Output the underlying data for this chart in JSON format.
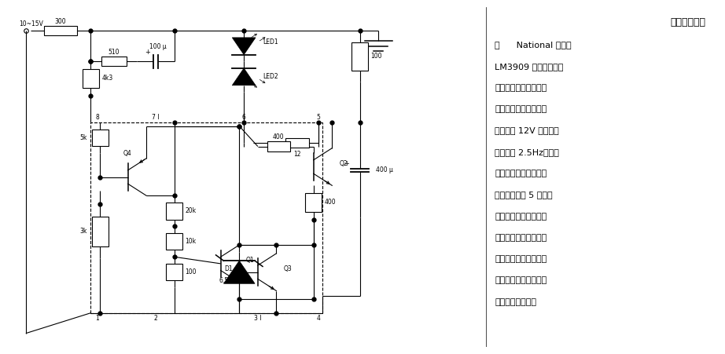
{
  "bg_color": "#ffffff",
  "fig_width": 9.22,
  "fig_height": 4.51,
  "dpi": 100,
  "title_text": "红绿灯交替闪",
  "body_lines": [
    "光      National 公司的",
    "LM3909 连接成弛张振",
    "荡器，它使红光绿光两",
    "个二极管交替闪光。电",
    "源电压为 12V 时，重复",
    "频率约为 2.5Hz。绿光",
    "的发光二极管的阳极或",
    "正极必须接第 5 引脚，",
    "如图中靠下方的二极管",
    "的接法一样，这是因为",
    "这一引脚的脉冲电压较",
    "高、时间较短。发光二",
    "极管的型号不拘。"
  ],
  "lw": 0.8
}
